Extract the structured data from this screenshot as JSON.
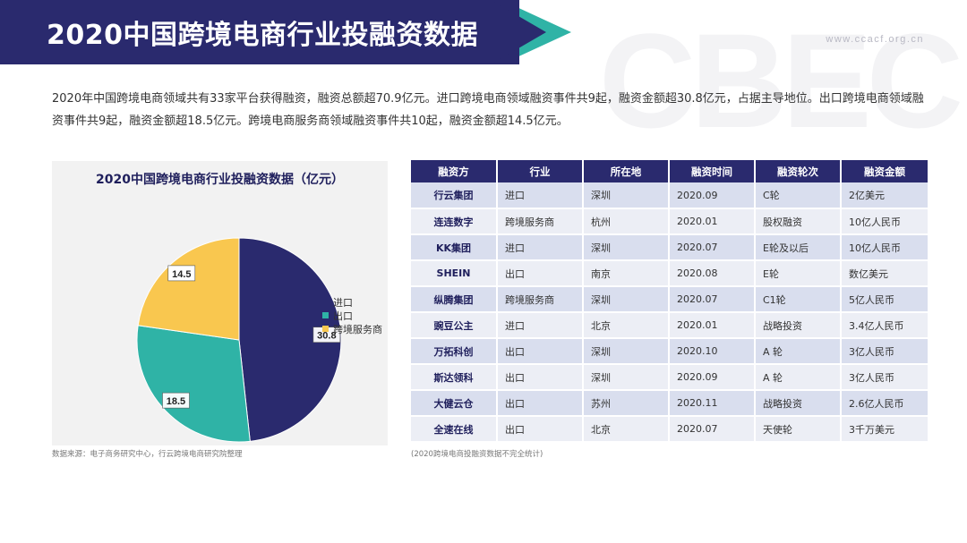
{
  "header": {
    "title": "2020中国跨境电商行业投融资数据",
    "site_url": "www.ccacf.org.cn",
    "bg_logo": "CBEC"
  },
  "intro": "2020年中国跨境电商领域共有33家平台获得融资，融资总额超70.9亿元。进口跨境电商领域融资事件共9起，融资金额超30.8亿元，占据主导地位。出口跨境电商领域融资事件共9起，融资金额超18.5亿元。跨境电商服务商领域融资事件共10起，融资金额超14.5亿元。",
  "chart_data": {
    "type": "pie",
    "title": "2020中国跨境电商行业投融资数据（亿元）",
    "categories": [
      "进口",
      "出口",
      "跨境服务商"
    ],
    "values": [
      30.8,
      18.5,
      14.5
    ],
    "colors": [
      "#2a2a6e",
      "#2fb3a6",
      "#f9c74f"
    ],
    "data_labels": [
      "30.8",
      "18.5",
      "14.5"
    ],
    "legend": "right"
  },
  "source_left": "数据来源：电子商务研究中心，行云跨境电商研究院整理",
  "source_right": "(2020跨境电商投融资数据不完全统计)",
  "table": {
    "headers": [
      "融资方",
      "行业",
      "所在地",
      "融资时间",
      "融资轮次",
      "融资金额"
    ],
    "rows": [
      [
        "行云集团",
        "进口",
        "深圳",
        "2020.09",
        "C轮",
        "2亿美元"
      ],
      [
        "连连数字",
        "跨境服务商",
        "杭州",
        "2020.01",
        "股权融资",
        "10亿人民币"
      ],
      [
        "KK集团",
        "进口",
        "深圳",
        "2020.07",
        "E轮及以后",
        "10亿人民币"
      ],
      [
        "SHEIN",
        "出口",
        "南京",
        "2020.08",
        "E轮",
        "数亿美元"
      ],
      [
        "纵腾集团",
        "跨境服务商",
        "深圳",
        "2020.07",
        "C1轮",
        "5亿人民币"
      ],
      [
        "豌豆公主",
        "进口",
        "北京",
        "2020.01",
        "战略投资",
        "3.4亿人民币"
      ],
      [
        "万拓科创",
        "出口",
        "深圳",
        "2020.10",
        "A 轮",
        "3亿人民币"
      ],
      [
        "斯达领科",
        "出口",
        "深圳",
        "2020.09",
        "A 轮",
        "3亿人民币"
      ],
      [
        "大健云仓",
        "出口",
        "苏州",
        "2020.11",
        "战略投资",
        "2.6亿人民币"
      ],
      [
        "全速在线",
        "出口",
        "北京",
        "2020.07",
        "天使轮",
        "3千万美元"
      ]
    ]
  }
}
